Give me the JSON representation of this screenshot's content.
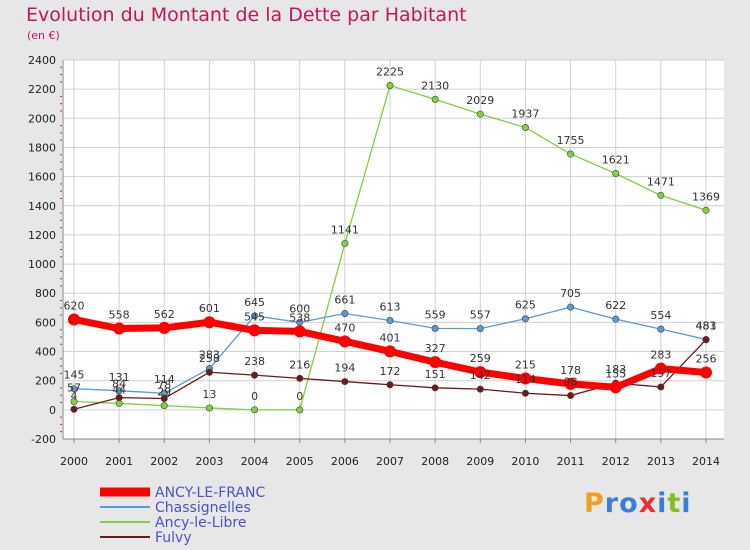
{
  "chart_data": {
    "type": "line",
    "title": "Evolution du Montant de la Dette par Habitant",
    "subtitle": "(en €)",
    "x": [
      "2000",
      "2001",
      "2002",
      "2003",
      "2004",
      "2005",
      "2006",
      "2007",
      "2008",
      "2009",
      "2010",
      "2011",
      "2012",
      "2013",
      "2014"
    ],
    "ylim": [
      -200,
      2400
    ],
    "yticks": [
      -200,
      0,
      200,
      400,
      600,
      800,
      1000,
      1200,
      1400,
      1600,
      1800,
      2000,
      2200,
      2400
    ],
    "grid": true,
    "legend": "bottom-left",
    "series": [
      {
        "name": "ANCY-LE-FRANC",
        "color": "#ff0000",
        "values": [
          620,
          558,
          562,
          601,
          545,
          538,
          470,
          401,
          327,
          259,
          215,
          178,
          155,
          283,
          256
        ]
      },
      {
        "name": "Chassignelles",
        "color": "#5b9bd5",
        "values": [
          145,
          131,
          114,
          283,
          645,
          600,
          661,
          613,
          559,
          557,
          625,
          705,
          622,
          554,
          483
        ]
      },
      {
        "name": "Ancy-le-Libre",
        "color": "#80d040",
        "values": [
          57,
          44,
          29,
          13,
          0,
          0,
          1141,
          2225,
          2130,
          2029,
          1937,
          1755,
          1621,
          1471,
          1369
        ]
      },
      {
        "name": "Fulvy",
        "color": "#6b1a1a",
        "values": [
          4,
          84,
          78,
          258,
          238,
          216,
          194,
          172,
          151,
          142,
          114,
          98,
          183,
          157,
          481
        ]
      }
    ]
  },
  "logo": {
    "letters": [
      "P",
      "r",
      "o",
      "x",
      "i",
      "t",
      "i"
    ],
    "colors": [
      "#f0a020",
      "#3a7fd5",
      "#3a7fd5",
      "#e83030",
      "#3a7fd5",
      "#80c020",
      "#3a7fd5"
    ]
  }
}
